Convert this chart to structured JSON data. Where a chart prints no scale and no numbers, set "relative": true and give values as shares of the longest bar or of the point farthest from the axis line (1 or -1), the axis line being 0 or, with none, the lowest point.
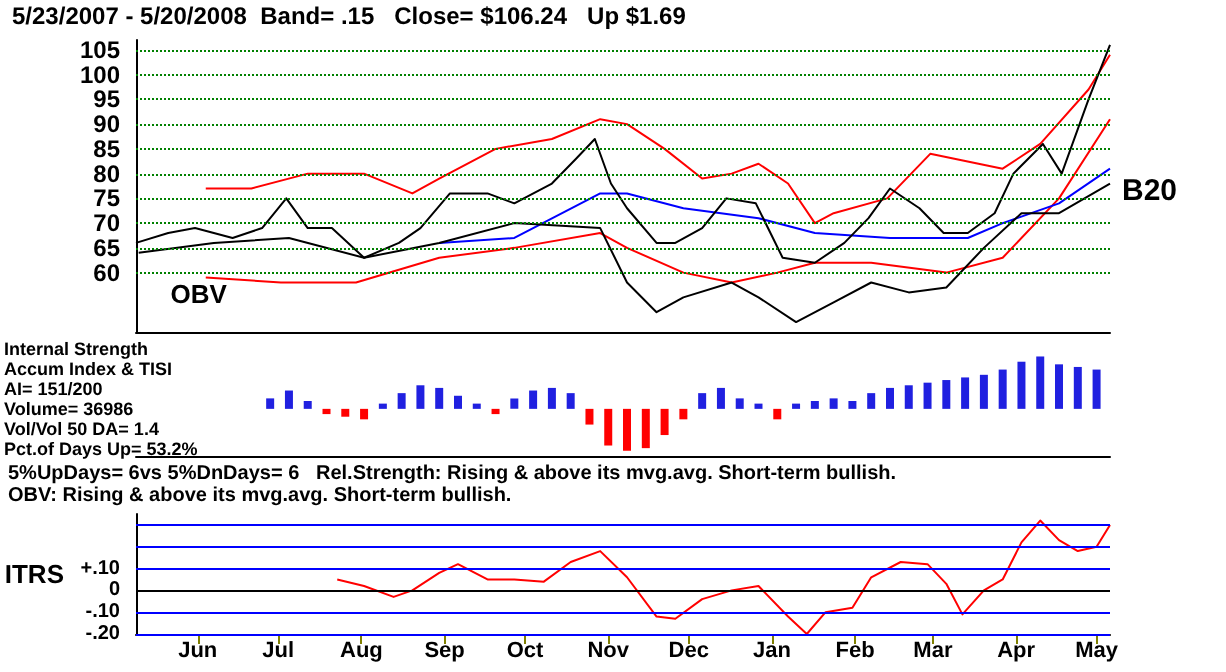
{
  "chart_data": [
    {
      "type": "line",
      "subtitle": "5/23/2007 - 5/20/2008  Band= .15   Close= $106.24   Up $1.69",
      "annotations": [
        "B20"
      ],
      "xlim": [
        "2007-05-23",
        "2008-05-20"
      ],
      "ylim": [
        48,
        107
      ],
      "yticks": [
        60,
        65,
        70,
        75,
        80,
        85,
        90,
        95,
        100,
        105
      ],
      "grid": "y",
      "tick_labels": "y",
      "legend": false,
      "series": [
        {
          "color": "#ff0000",
          "x": [
            "2007-06-18",
            "2007-07-05",
            "2007-07-26",
            "2007-08-16",
            "2007-09-03",
            "2007-09-13",
            "2007-10-04",
            "2007-10-25",
            "2007-11-12",
            "2007-11-22",
            "2007-12-06",
            "2007-12-20",
            "2007-12-31",
            "2008-01-10",
            "2008-01-21",
            "2008-01-31",
            "2008-02-07",
            "2008-02-27",
            "2008-03-14",
            "2008-04-10",
            "2008-04-24",
            "2008-05-12",
            "2008-05-20"
          ],
          "values": [
            77,
            77,
            80,
            80,
            76,
            79,
            85,
            87,
            91,
            90,
            85,
            79,
            80,
            82,
            78,
            70,
            72,
            75,
            84,
            81,
            86,
            97,
            104
          ]
        },
        {
          "color": "#ff0000",
          "x": [
            "2007-06-18",
            "2007-07-16",
            "2007-08-13",
            "2007-09-13",
            "2007-10-11",
            "2007-11-12",
            "2007-11-22",
            "2007-12-13",
            "2007-12-31",
            "2008-01-17",
            "2008-01-31",
            "2008-02-21",
            "2008-03-20",
            "2008-04-10",
            "2008-05-01",
            "2008-05-20"
          ],
          "values": [
            59,
            58,
            58,
            63,
            65,
            68,
            65,
            60,
            58,
            60,
            62,
            62,
            60,
            63,
            75,
            91
          ]
        },
        {
          "color": "#0000ff",
          "x": [
            "2007-09-13",
            "2007-10-11",
            "2007-11-12",
            "2007-11-22",
            "2007-12-13",
            "2008-01-10",
            "2008-01-31",
            "2008-02-28",
            "2008-03-28",
            "2008-04-10",
            "2008-05-01",
            "2008-05-20"
          ],
          "values": [
            66,
            67,
            76,
            76,
            73,
            71,
            68,
            67,
            67,
            70,
            74,
            81
          ]
        },
        {
          "name": "OBV",
          "color": "#000000",
          "x": [
            "2007-05-24",
            "2007-06-21",
            "2007-07-19",
            "2007-08-16",
            "2007-09-13",
            "2007-10-11",
            "2007-11-12",
            "2007-11-22",
            "2007-12-03",
            "2007-12-13",
            "2007-12-31",
            "2008-01-10",
            "2008-01-24",
            "2008-02-07",
            "2008-02-21",
            "2008-03-06",
            "2008-03-20",
            "2008-04-03",
            "2008-04-17",
            "2008-05-01",
            "2008-05-20"
          ],
          "values": [
            64,
            66,
            67,
            63,
            66,
            70,
            69,
            58,
            52,
            55,
            58,
            55,
            50,
            54,
            58,
            56,
            57,
            65,
            72,
            72,
            78
          ]
        },
        {
          "color": "#000000",
          "x": [
            "2007-05-23",
            "2007-06-04",
            "2007-06-14",
            "2007-06-28",
            "2007-07-09",
            "2007-07-18",
            "2007-07-26",
            "2007-08-04",
            "2007-08-16",
            "2007-08-29",
            "2007-09-06",
            "2007-09-17",
            "2007-10-01",
            "2007-10-11",
            "2007-10-25",
            "2007-11-03",
            "2007-11-10",
            "2007-11-16",
            "2007-11-22",
            "2007-12-03",
            "2007-12-10",
            "2007-12-20",
            "2007-12-29",
            "2008-01-09",
            "2008-01-19",
            "2008-01-31",
            "2008-02-11",
            "2008-02-20",
            "2008-02-28",
            "2008-03-10",
            "2008-03-19",
            "2008-03-28",
            "2008-04-07",
            "2008-04-14",
            "2008-04-25",
            "2008-05-02",
            "2008-05-12",
            "2008-05-20"
          ],
          "values": [
            66,
            68,
            69,
            67,
            69,
            75,
            69,
            69,
            63,
            66,
            69,
            76,
            76,
            74,
            78,
            83,
            87,
            78,
            73,
            66,
            66,
            69,
            75,
            74,
            63,
            62,
            66,
            71,
            77,
            73,
            68,
            68,
            72,
            80,
            86,
            80,
            95,
            106
          ]
        }
      ]
    },
    {
      "type": "bar",
      "relative": true,
      "tick_labels": false,
      "annotations": [
        "Internal Strength",
        "Accum Index & TISI",
        "AI= 151/200",
        "Volume= 36986",
        "Vol/Vol 50 DA= 1.4",
        "Pct.of Days Up= 53.2%"
      ],
      "xlim": [
        "2007-05-23",
        "2008-05-20"
      ],
      "x": [
        "2007-07-12",
        "2007-07-19",
        "2007-07-26",
        "2007-08-02",
        "2007-08-09",
        "2007-08-16",
        "2007-08-23",
        "2007-08-30",
        "2007-09-06",
        "2007-09-13",
        "2007-09-20",
        "2007-09-27",
        "2007-10-04",
        "2007-10-11",
        "2007-10-18",
        "2007-10-25",
        "2007-11-01",
        "2007-11-08",
        "2007-11-15",
        "2007-11-22",
        "2007-11-29",
        "2007-12-06",
        "2007-12-13",
        "2007-12-20",
        "2007-12-27",
        "2008-01-03",
        "2008-01-10",
        "2008-01-17",
        "2008-01-24",
        "2008-01-31",
        "2008-02-07",
        "2008-02-14",
        "2008-02-21",
        "2008-02-28",
        "2008-03-06",
        "2008-03-13",
        "2008-03-20",
        "2008-03-27",
        "2008-04-03",
        "2008-04-10",
        "2008-04-17",
        "2008-04-24",
        "2008-05-01",
        "2008-05-08",
        "2008-05-15"
      ],
      "values": [
        0.2,
        0.35,
        0.15,
        -0.1,
        -0.15,
        -0.2,
        0.1,
        0.3,
        0.45,
        0.4,
        0.25,
        0.1,
        -0.1,
        0.2,
        0.35,
        0.4,
        0.3,
        -0.3,
        -0.7,
        -0.8,
        -0.75,
        -0.5,
        -0.2,
        0.3,
        0.4,
        0.2,
        0.1,
        -0.2,
        0.1,
        0.15,
        0.2,
        0.15,
        0.3,
        0.4,
        0.45,
        0.5,
        0.55,
        0.6,
        0.65,
        0.75,
        0.9,
        1.0,
        0.85,
        0.8,
        0.75
      ],
      "colors": [
        "#2020e0",
        "#2020e0",
        "#2020e0",
        "#ff0000",
        "#ff0000",
        "#ff0000",
        "#2020e0",
        "#2020e0",
        "#2020e0",
        "#2020e0",
        "#2020e0",
        "#2020e0",
        "#ff0000",
        "#2020e0",
        "#2020e0",
        "#2020e0",
        "#2020e0",
        "#ff0000",
        "#ff0000",
        "#ff0000",
        "#ff0000",
        "#ff0000",
        "#ff0000",
        "#2020e0",
        "#2020e0",
        "#2020e0",
        "#2020e0",
        "#ff0000",
        "#2020e0",
        "#2020e0",
        "#2020e0",
        "#2020e0",
        "#2020e0",
        "#2020e0",
        "#2020e0",
        "#2020e0",
        "#2020e0",
        "#2020e0",
        "#2020e0",
        "#2020e0",
        "#2020e0",
        "#2020e0",
        "#2020e0",
        "#2020e0",
        "#2020e0"
      ]
    },
    {
      "type": "line",
      "ylabel": "ITRS",
      "annotations": [
        "5%UpDays= 6vs 5%DnDays= 6   Rel.Strength: Rising & above its mvg.avg. Short-term bullish.",
        "OBV: Rising & above its mvg.avg. Short-term bullish."
      ],
      "xlim": [
        "2007-05-23",
        "2008-05-20"
      ],
      "xticks": [
        {
          "value": "2007-06-15",
          "label": "Jun"
        },
        {
          "value": "2007-07-15",
          "label": "Jul"
        },
        {
          "value": "2007-08-15",
          "label": "Aug"
        },
        {
          "value": "2007-09-15",
          "label": "Sep"
        },
        {
          "value": "2007-10-15",
          "label": "Oct"
        },
        {
          "value": "2007-11-15",
          "label": "Nov"
        },
        {
          "value": "2007-12-15",
          "label": "Dec"
        },
        {
          "value": "2008-01-15",
          "label": "Jan"
        },
        {
          "value": "2008-02-15",
          "label": "Feb"
        },
        {
          "value": "2008-03-15",
          "label": "Mar"
        },
        {
          "value": "2008-04-15",
          "label": "Apr"
        },
        {
          "value": "2008-05-15",
          "label": "May"
        }
      ],
      "ylim": [
        -0.2,
        0.35
      ],
      "yticks": [
        {
          "value": 0.3,
          "label": null
        },
        {
          "value": 0.2,
          "label": null
        },
        {
          "value": 0.1,
          "label": "+.10"
        },
        {
          "value": 0,
          "label": "0"
        },
        {
          "value": -0.1,
          "label": "-.10"
        },
        {
          "value": -0.2,
          "label": "-.20"
        }
      ],
      "grid": "y",
      "ref_lines": [
        {
          "axis": "y",
          "value": 0,
          "color": "#000000"
        }
      ],
      "series": [
        {
          "color": "#ff0000",
          "x": [
            "2007-08-06",
            "2007-08-16",
            "2007-08-27",
            "2007-09-03",
            "2007-09-13",
            "2007-09-20",
            "2007-10-01",
            "2007-10-11",
            "2007-10-22",
            "2007-11-01",
            "2007-11-12",
            "2007-11-22",
            "2007-12-03",
            "2007-12-10",
            "2007-12-20",
            "2007-12-31",
            "2008-01-10",
            "2008-01-21",
            "2008-01-28",
            "2008-02-04",
            "2008-02-14",
            "2008-02-21",
            "2008-03-03",
            "2008-03-13",
            "2008-03-20",
            "2008-03-26",
            "2008-04-03",
            "2008-04-10",
            "2008-04-17",
            "2008-04-24",
            "2008-05-01",
            "2008-05-08",
            "2008-05-15",
            "2008-05-20"
          ],
          "values": [
            0.05,
            0.02,
            -0.03,
            0.0,
            0.08,
            0.12,
            0.05,
            0.05,
            0.04,
            0.13,
            0.18,
            0.06,
            -0.12,
            -0.13,
            -0.04,
            0.0,
            0.02,
            -0.12,
            -0.2,
            -0.1,
            -0.08,
            0.06,
            0.13,
            0.12,
            0.03,
            -0.11,
            0.0,
            0.05,
            0.22,
            0.32,
            0.23,
            0.18,
            0.2,
            0.3
          ]
        }
      ]
    }
  ]
}
